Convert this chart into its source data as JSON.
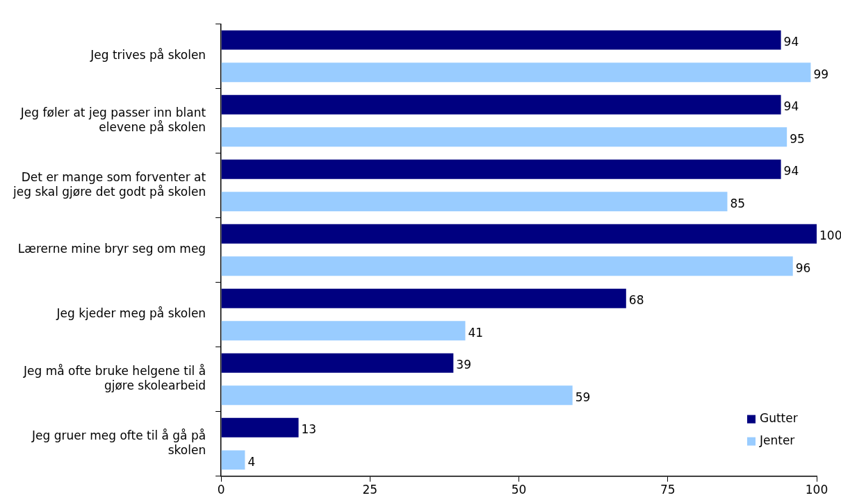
{
  "chart_data": {
    "type": "bar",
    "orientation": "horizontal",
    "categories": [
      "Jeg trives på skolen",
      "Jeg føler at jeg passer inn blant elevene på skolen",
      "Det er mange som forventer at jeg skal gjøre det godt på skolen",
      "Lærerne mine bryr seg om meg",
      "Jeg kjeder meg på skolen",
      "Jeg må ofte bruke helgene til å gjøre skolearbeid",
      "Jeg gruer meg ofte til å gå på skolen"
    ],
    "series": [
      {
        "name": "Gutter",
        "color": "#000080",
        "values": [
          94,
          94,
          94,
          100,
          68,
          39,
          13
        ]
      },
      {
        "name": "Jenter",
        "color": "#99ccff",
        "values": [
          99,
          95,
          85,
          96,
          41,
          59,
          4
        ]
      }
    ],
    "xlim": [
      0,
      100
    ],
    "xticks": [
      0,
      25,
      50,
      75,
      100
    ],
    "grid": false,
    "legend": "bottom right",
    "data_labels": true
  }
}
